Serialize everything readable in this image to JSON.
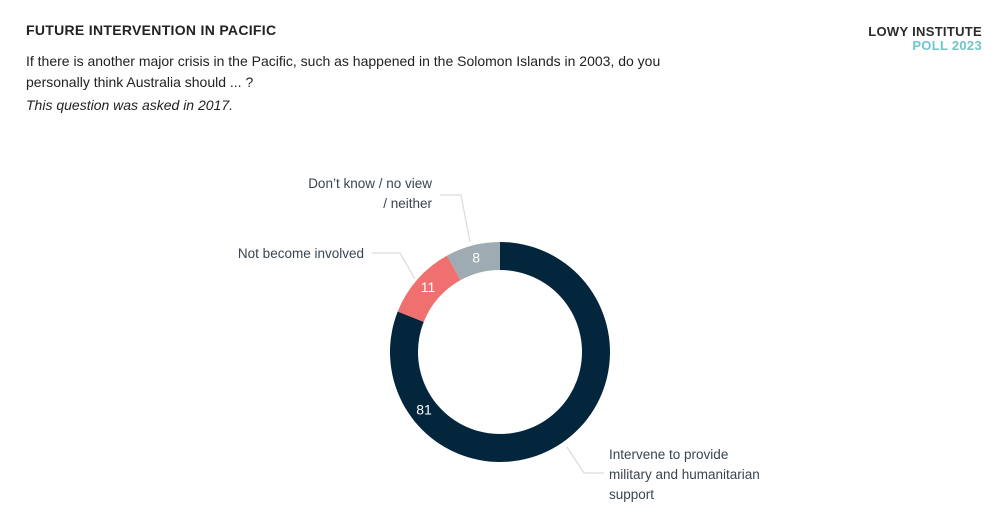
{
  "header": {
    "title": "FUTURE INTERVENTION IN PACIFIC",
    "question": "If there is another major crisis in the Pacific, such as happened in the Solomon Islands in 2003, do you personally think Australia should ... ?",
    "note": "This question was asked in 2017."
  },
  "brand": {
    "line1": "LOWY INSTITUTE",
    "line2": "POLL 2023",
    "line2_color": "#6ec6cc"
  },
  "chart_data": {
    "type": "pie",
    "donut": true,
    "slices": [
      {
        "label": "Intervene to provide military and humanitarian support",
        "label_lines": [
          "Intervene to provide",
          "military and humanitarian",
          "support"
        ],
        "value": 81,
        "color": "#03263d"
      },
      {
        "label": "Not become involved",
        "label_lines": [
          "Not become involved"
        ],
        "value": 11,
        "color": "#f07070"
      },
      {
        "label": "Don't know / no view / neither",
        "label_lines": [
          "Don’t know / no view",
          "/ neither"
        ],
        "value": 8,
        "color": "#9eabb2"
      }
    ]
  }
}
